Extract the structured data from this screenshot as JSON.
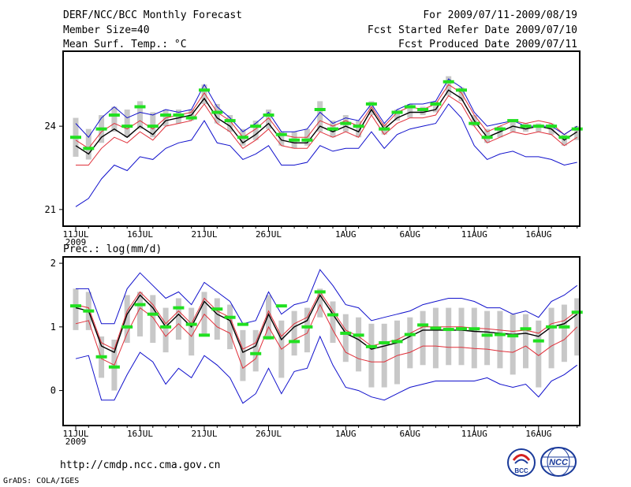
{
  "header": {
    "title": "DERF/NCC/BCC Monthly Forecast",
    "member_size": "Member Size=40",
    "variable1": "Mean Surf. Temp.: °C",
    "period": "For 2009/07/11-2009/08/19",
    "fcst_started": "Fcst Started Refer Date 2009/07/10",
    "fcst_produced": "Fcst Produced Date 2009/07/11"
  },
  "footer": {
    "url": "http://cmdp.ncc.cma.gov.cn",
    "grads": "GrADS: COLA/IGES",
    "logo_left": "BCC",
    "logo_right": "NCC"
  },
  "colors": {
    "ensemble_mean": "#000000",
    "inner_spread": "#e0303a",
    "outer_envelope": "#1010cc",
    "member_box": "#c8c8c8",
    "observation": "#20e020"
  },
  "chart_data": [
    {
      "type": "line",
      "title": "Mean Surf. Temp.: °C",
      "xtick_labels": [
        "11JUL",
        "16JUL",
        "21JUL",
        "26JUL",
        "1AUG",
        "6AUG",
        "11AUG",
        "16AUG"
      ],
      "xtick_index": [
        0,
        5,
        10,
        15,
        21,
        26,
        31,
        36
      ],
      "year_label": "2009",
      "ytick_labels": [
        "21",
        "24"
      ],
      "yticks": [
        21,
        24
      ],
      "ylim": [
        20.4,
        26.7
      ],
      "series": [
        {
          "name": "ensemble mean",
          "values": [
            23.3,
            23.0,
            23.6,
            23.9,
            23.6,
            24.0,
            23.7,
            24.2,
            24.3,
            24.4,
            25.0,
            24.3,
            24.0,
            23.4,
            23.7,
            24.1,
            23.5,
            23.4,
            23.4,
            24.0,
            23.8,
            24.0,
            23.8,
            24.6,
            23.9,
            24.3,
            24.5,
            24.5,
            24.6,
            25.3,
            25.0,
            24.2,
            23.6,
            23.8,
            24.0,
            23.9,
            24.0,
            23.9,
            23.5,
            23.8
          ]
        },
        {
          "name": "spread upper",
          "values": [
            23.5,
            23.2,
            23.8,
            24.1,
            23.9,
            24.2,
            23.9,
            24.3,
            24.4,
            24.5,
            25.2,
            24.5,
            24.2,
            23.6,
            23.9,
            24.3,
            23.7,
            23.6,
            23.6,
            24.2,
            24.0,
            24.2,
            24.0,
            24.7,
            24.0,
            24.5,
            24.7,
            24.6,
            24.8,
            25.5,
            25.2,
            24.4,
            23.8,
            24.0,
            24.2,
            24.1,
            24.2,
            24.1,
            23.7,
            24.0
          ]
        },
        {
          "name": "spread lower",
          "values": [
            22.6,
            22.6,
            23.2,
            23.6,
            23.4,
            23.8,
            23.5,
            24.0,
            24.1,
            24.2,
            24.8,
            24.1,
            23.8,
            23.2,
            23.5,
            23.9,
            23.3,
            23.2,
            23.2,
            23.8,
            23.6,
            23.8,
            23.6,
            24.4,
            23.7,
            24.1,
            24.3,
            24.3,
            24.4,
            25.1,
            24.8,
            24.0,
            23.4,
            23.6,
            23.8,
            23.7,
            23.8,
            23.7,
            23.3,
            23.6
          ]
        },
        {
          "name": "envelope upper",
          "values": [
            24.1,
            23.6,
            24.3,
            24.7,
            24.3,
            24.5,
            24.4,
            24.6,
            24.5,
            24.6,
            25.5,
            24.7,
            24.3,
            23.8,
            24.1,
            24.5,
            23.8,
            23.8,
            23.9,
            24.5,
            24.1,
            24.3,
            24.2,
            24.8,
            24.1,
            24.6,
            24.8,
            24.8,
            24.9,
            25.7,
            25.4,
            24.5,
            24.0,
            24.1,
            24.2,
            24.0,
            24.0,
            24.0,
            23.7,
            24.0
          ]
        },
        {
          "name": "envelope lower",
          "values": [
            21.1,
            21.4,
            22.1,
            22.6,
            22.4,
            22.9,
            22.8,
            23.2,
            23.4,
            23.5,
            24.2,
            23.4,
            23.3,
            22.8,
            23.0,
            23.3,
            22.6,
            22.6,
            22.7,
            23.3,
            23.1,
            23.2,
            23.2,
            23.8,
            23.2,
            23.7,
            23.9,
            24.0,
            24.1,
            24.8,
            24.3,
            23.3,
            22.8,
            23.0,
            23.1,
            22.9,
            22.9,
            22.8,
            22.6,
            22.7
          ]
        },
        {
          "name": "observation",
          "values": [
            23.6,
            23.2,
            23.9,
            24.4,
            24.0,
            24.7,
            24.0,
            24.4,
            24.4,
            24.3,
            25.3,
            24.5,
            24.2,
            23.6,
            24.0,
            24.4,
            23.7,
            23.5,
            23.5,
            24.6,
            23.9,
            24.1,
            24.0,
            24.8,
            23.9,
            24.5,
            24.7,
            24.6,
            24.8,
            25.6,
            25.3,
            24.1,
            23.6,
            23.9,
            24.2,
            24.0,
            24.0,
            24.0,
            23.6,
            23.9
          ]
        }
      ],
      "member_box": {
        "upper": [
          24.3,
          23.9,
          24.4,
          24.7,
          24.6,
          24.9,
          24.5,
          24.6,
          24.6,
          24.6,
          25.5,
          24.8,
          24.4,
          23.9,
          24.2,
          24.6,
          23.8,
          23.8,
          23.9,
          24.9,
          24.2,
          24.4,
          24.2,
          24.9,
          24.1,
          24.6,
          24.8,
          24.7,
          24.9,
          25.8,
          25.4,
          24.4,
          23.9,
          24.0,
          24.2,
          24.1,
          24.1,
          24.1,
          23.7,
          24.0
        ],
        "lower": [
          22.9,
          22.8,
          23.4,
          23.8,
          23.6,
          23.9,
          23.6,
          24.0,
          24.1,
          24.2,
          24.8,
          24.1,
          23.8,
          23.3,
          23.5,
          23.9,
          23.3,
          23.2,
          23.3,
          23.8,
          23.6,
          23.8,
          23.6,
          24.4,
          23.7,
          24.2,
          24.3,
          24.4,
          24.5,
          25.1,
          24.9,
          24.0,
          23.4,
          23.6,
          23.8,
          23.8,
          23.8,
          23.7,
          23.3,
          23.5
        ]
      }
    },
    {
      "type": "line",
      "title": "Prec.: log(mm/d)",
      "xtick_labels": [
        "11JUL",
        "16JUL",
        "21JUL",
        "26JUL",
        "1AUG",
        "6AUG",
        "11AUG",
        "16AUG"
      ],
      "xtick_index": [
        0,
        5,
        10,
        15,
        21,
        26,
        31,
        36
      ],
      "year_label": "2009",
      "ytick_labels": [
        "0",
        "1",
        "2"
      ],
      "yticks": [
        0,
        1,
        2
      ],
      "ylim": [
        -0.55,
        2.1
      ],
      "series": [
        {
          "name": "ensemble mean",
          "values": [
            1.3,
            1.25,
            0.7,
            0.6,
            1.2,
            1.5,
            1.3,
            1.0,
            1.2,
            1.0,
            1.4,
            1.2,
            1.1,
            0.6,
            0.7,
            1.2,
            0.8,
            1.0,
            1.1,
            1.5,
            1.2,
            0.9,
            0.8,
            0.65,
            0.7,
            0.75,
            0.85,
            0.95,
            0.95,
            0.95,
            0.95,
            0.93,
            0.92,
            0.9,
            0.88,
            0.9,
            0.85,
            1.0,
            1.05,
            1.2
          ]
        },
        {
          "name": "spread upper",
          "values": [
            1.35,
            1.3,
            0.75,
            0.65,
            1.25,
            1.55,
            1.35,
            1.05,
            1.25,
            1.05,
            1.45,
            1.25,
            1.15,
            0.65,
            0.75,
            1.25,
            0.85,
            1.05,
            1.15,
            1.55,
            1.25,
            0.95,
            0.85,
            0.7,
            0.75,
            0.8,
            0.9,
            1.0,
            1.0,
            1.0,
            1.0,
            0.98,
            0.97,
            0.95,
            0.93,
            0.95,
            0.9,
            1.05,
            1.1,
            1.25
          ]
        },
        {
          "name": "spread lower",
          "values": [
            1.05,
            1.1,
            0.5,
            0.4,
            0.9,
            1.3,
            1.15,
            0.85,
            1.05,
            0.85,
            1.2,
            1.0,
            0.9,
            0.35,
            0.5,
            1.0,
            0.65,
            0.8,
            0.9,
            1.35,
            0.95,
            0.6,
            0.5,
            0.45,
            0.45,
            0.55,
            0.6,
            0.7,
            0.7,
            0.68,
            0.68,
            0.66,
            0.65,
            0.62,
            0.6,
            0.7,
            0.55,
            0.7,
            0.8,
            1.0
          ]
        },
        {
          "name": "envelope upper",
          "values": [
            1.6,
            1.6,
            1.05,
            1.05,
            1.6,
            1.85,
            1.65,
            1.45,
            1.55,
            1.35,
            1.7,
            1.55,
            1.4,
            1.05,
            1.1,
            1.55,
            1.2,
            1.35,
            1.4,
            1.9,
            1.65,
            1.35,
            1.3,
            1.1,
            1.15,
            1.2,
            1.25,
            1.35,
            1.4,
            1.45,
            1.45,
            1.4,
            1.3,
            1.3,
            1.2,
            1.25,
            1.15,
            1.4,
            1.5,
            1.65
          ]
        },
        {
          "name": "envelope lower",
          "values": [
            0.5,
            0.55,
            -0.15,
            -0.15,
            0.25,
            0.6,
            0.45,
            0.1,
            0.35,
            0.2,
            0.55,
            0.4,
            0.2,
            -0.2,
            -0.05,
            0.35,
            -0.05,
            0.3,
            0.35,
            0.85,
            0.4,
            0.05,
            0.0,
            -0.1,
            -0.15,
            -0.05,
            0.05,
            0.1,
            0.15,
            0.15,
            0.15,
            0.15,
            0.2,
            0.1,
            0.05,
            0.1,
            -0.1,
            0.15,
            0.25,
            0.4
          ]
        },
        {
          "name": "observation",
          "values": [
            1.33,
            1.25,
            0.53,
            0.37,
            1.0,
            1.35,
            1.2,
            1.0,
            1.3,
            1.04,
            0.87,
            1.28,
            1.15,
            1.04,
            0.58,
            0.83,
            1.33,
            0.77,
            1.0,
            1.55,
            1.19,
            0.9,
            0.87,
            0.69,
            0.75,
            0.77,
            0.88,
            1.03,
            0.98,
            0.96,
            0.97,
            0.97,
            0.87,
            0.88,
            0.86,
            0.97,
            0.78,
            1.0,
            1.0,
            1.23
          ]
        }
      ],
      "member_box": {
        "upper": [
          1.6,
          1.55,
          0.85,
          0.8,
          1.5,
          1.55,
          1.5,
          1.3,
          1.45,
          1.3,
          1.55,
          1.45,
          1.35,
          0.95,
          0.95,
          1.5,
          1.1,
          1.25,
          1.3,
          1.6,
          1.4,
          1.2,
          1.15,
          1.05,
          1.05,
          1.1,
          1.15,
          1.25,
          1.3,
          1.3,
          1.3,
          1.3,
          1.25,
          1.25,
          1.2,
          1.2,
          1.1,
          1.3,
          1.35,
          1.45
        ],
        "lower": [
          0.95,
          0.95,
          0.2,
          0.0,
          0.75,
          0.85,
          0.75,
          0.6,
          0.8,
          0.55,
          0.85,
          0.8,
          0.65,
          0.15,
          0.3,
          0.8,
          0.2,
          0.55,
          0.6,
          1.15,
          0.75,
          0.45,
          0.3,
          0.05,
          0.05,
          0.1,
          0.35,
          0.4,
          0.35,
          0.4,
          0.4,
          0.35,
          0.4,
          0.35,
          0.25,
          0.35,
          0.05,
          0.35,
          0.45,
          0.55
        ]
      }
    }
  ]
}
